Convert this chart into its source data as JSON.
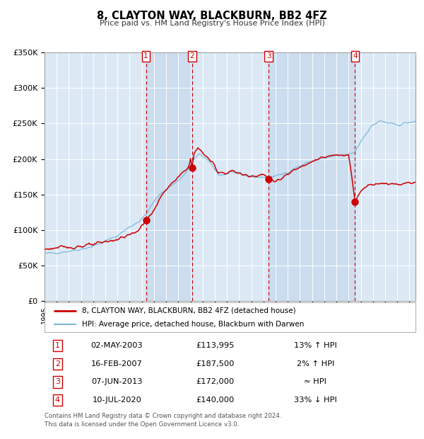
{
  "title": "8, CLAYTON WAY, BLACKBURN, BB2 4FZ",
  "subtitle": "Price paid vs. HM Land Registry's House Price Index (HPI)",
  "background_color": "#ffffff",
  "plot_bg_color": "#dce9f5",
  "grid_color": "#ffffff",
  "hpi_color": "#7ab8d9",
  "price_color": "#cc0000",
  "transactions": [
    {
      "num": 1,
      "date": "02-MAY-2003",
      "year": 2003.34,
      "price": 113995,
      "label": "13% ↑ HPI"
    },
    {
      "num": 2,
      "date": "16-FEB-2007",
      "year": 2007.12,
      "price": 187500,
      "label": "2% ↑ HPI"
    },
    {
      "num": 3,
      "date": "07-JUN-2013",
      "year": 2013.44,
      "price": 172000,
      "label": "≈ HPI"
    },
    {
      "num": 4,
      "date": "10-JUL-2020",
      "year": 2020.53,
      "price": 140000,
      "label": "33% ↓ HPI"
    }
  ],
  "ylim": [
    0,
    350000
  ],
  "xlim_start": 1995.0,
  "xlim_end": 2025.5,
  "yticks": [
    0,
    50000,
    100000,
    150000,
    200000,
    250000,
    300000,
    350000
  ],
  "ytick_labels": [
    "£0",
    "£50K",
    "£100K",
    "£150K",
    "£200K",
    "£250K",
    "£300K",
    "£350K"
  ],
  "legend_entry1": "8, CLAYTON WAY, BLACKBURN, BB2 4FZ (detached house)",
  "legend_entry2": "HPI: Average price, detached house, Blackburn with Darwen",
  "footer1": "Contains HM Land Registry data © Crown copyright and database right 2024.",
  "footer2": "This data is licensed under the Open Government Licence v3.0.",
  "hpi_anchors": [
    [
      1995.0,
      66000
    ],
    [
      1996.0,
      68000
    ],
    [
      1997.0,
      70000
    ],
    [
      1998.0,
      73000
    ],
    [
      1999.0,
      77000
    ],
    [
      2000.0,
      84000
    ],
    [
      2001.0,
      92000
    ],
    [
      2002.0,
      104000
    ],
    [
      2003.0,
      115000
    ],
    [
      2003.5,
      126000
    ],
    [
      2004.0,
      140000
    ],
    [
      2004.5,
      150000
    ],
    [
      2005.0,
      158000
    ],
    [
      2005.5,
      163000
    ],
    [
      2006.0,
      170000
    ],
    [
      2006.5,
      178000
    ],
    [
      2007.0,
      190000
    ],
    [
      2007.3,
      200000
    ],
    [
      2007.8,
      207000
    ],
    [
      2008.3,
      200000
    ],
    [
      2008.8,
      190000
    ],
    [
      2009.3,
      178000
    ],
    [
      2009.8,
      178000
    ],
    [
      2010.3,
      182000
    ],
    [
      2010.8,
      180000
    ],
    [
      2011.3,
      177000
    ],
    [
      2011.8,
      176000
    ],
    [
      2012.3,
      175000
    ],
    [
      2012.8,
      174000
    ],
    [
      2013.0,
      174000
    ],
    [
      2013.5,
      175000
    ],
    [
      2014.0,
      176000
    ],
    [
      2014.5,
      178000
    ],
    [
      2015.0,
      182000
    ],
    [
      2015.5,
      186000
    ],
    [
      2016.0,
      190000
    ],
    [
      2016.5,
      194000
    ],
    [
      2017.0,
      197000
    ],
    [
      2017.5,
      199000
    ],
    [
      2018.0,
      201000
    ],
    [
      2018.5,
      203000
    ],
    [
      2019.0,
      204000
    ],
    [
      2019.5,
      205000
    ],
    [
      2020.0,
      206000
    ],
    [
      2020.5,
      210000
    ],
    [
      2021.0,
      225000
    ],
    [
      2021.5,
      238000
    ],
    [
      2022.0,
      248000
    ],
    [
      2022.5,
      253000
    ],
    [
      2023.0,
      252000
    ],
    [
      2023.5,
      249000
    ],
    [
      2024.0,
      248000
    ],
    [
      2024.5,
      250000
    ],
    [
      2025.3,
      252000
    ]
  ],
  "price_anchors": [
    [
      1995.0,
      73000
    ],
    [
      1996.0,
      74500
    ],
    [
      1997.0,
      75500
    ],
    [
      1998.0,
      77000
    ],
    [
      1999.0,
      79000
    ],
    [
      2000.0,
      83000
    ],
    [
      2001.0,
      87000
    ],
    [
      2002.0,
      93000
    ],
    [
      2002.8,
      100000
    ],
    [
      2003.34,
      113995
    ],
    [
      2003.8,
      122000
    ],
    [
      2004.3,
      138000
    ],
    [
      2005.0,
      158000
    ],
    [
      2005.5,
      165000
    ],
    [
      2006.0,
      174000
    ],
    [
      2006.5,
      183000
    ],
    [
      2006.9,
      192000
    ],
    [
      2007.0,
      200000
    ],
    [
      2007.12,
      187500
    ],
    [
      2007.3,
      208000
    ],
    [
      2007.6,
      215000
    ],
    [
      2007.9,
      212000
    ],
    [
      2008.3,
      203000
    ],
    [
      2008.8,
      195000
    ],
    [
      2009.3,
      182000
    ],
    [
      2009.8,
      180000
    ],
    [
      2010.3,
      183000
    ],
    [
      2010.8,
      181000
    ],
    [
      2011.3,
      178000
    ],
    [
      2011.8,
      176000
    ],
    [
      2012.3,
      177000
    ],
    [
      2012.8,
      178000
    ],
    [
      2013.0,
      178000
    ],
    [
      2013.44,
      172000
    ],
    [
      2013.8,
      170000
    ],
    [
      2014.0,
      169000
    ],
    [
      2014.5,
      172000
    ],
    [
      2015.0,
      178000
    ],
    [
      2015.5,
      184000
    ],
    [
      2016.0,
      189000
    ],
    [
      2016.5,
      194000
    ],
    [
      2017.0,
      197000
    ],
    [
      2017.5,
      200000
    ],
    [
      2018.0,
      202000
    ],
    [
      2018.5,
      204000
    ],
    [
      2019.0,
      205000
    ],
    [
      2019.5,
      206000
    ],
    [
      2020.0,
      207000
    ],
    [
      2020.53,
      140000
    ],
    [
      2020.8,
      148000
    ],
    [
      2021.0,
      155000
    ],
    [
      2021.3,
      160000
    ],
    [
      2021.6,
      163000
    ],
    [
      2022.0,
      165000
    ],
    [
      2022.5,
      166000
    ],
    [
      2023.0,
      165000
    ],
    [
      2023.5,
      165500
    ],
    [
      2024.0,
      164500
    ],
    [
      2024.5,
      165500
    ],
    [
      2025.3,
      167000
    ]
  ]
}
